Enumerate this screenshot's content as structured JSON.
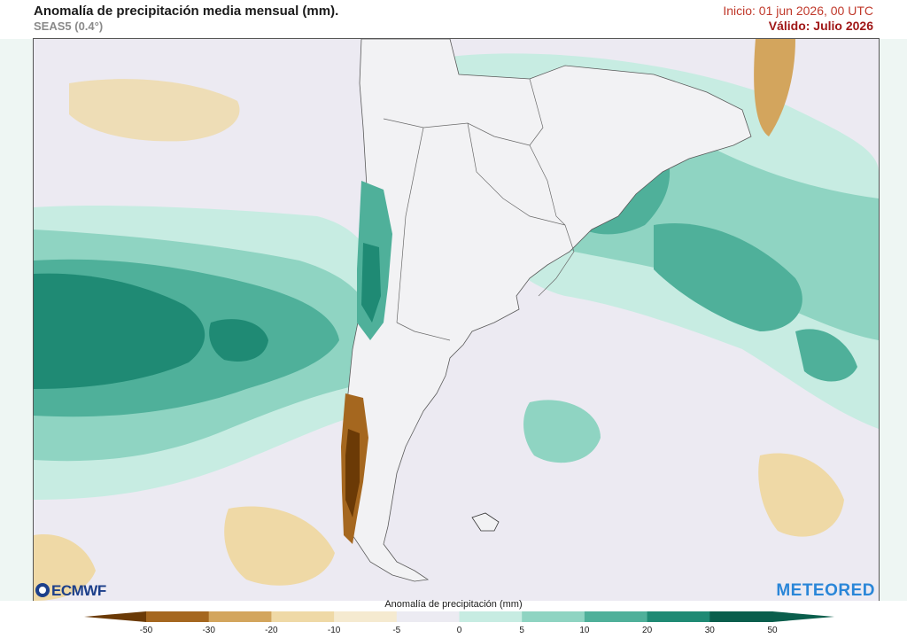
{
  "header": {
    "title": "Anomalía de precipitación media mensual (mm).",
    "subtitle": "SEAS5 (0.4°)",
    "init": "Inicio: 01 jun 2026, 00 UTC",
    "valid": "Válido: Julio 2026"
  },
  "logos": {
    "left": "ECMWF",
    "right": "METEORED"
  },
  "colorbar": {
    "title": "Anomalía de precipitación (mm)",
    "ticks": [
      "-50",
      "-30",
      "-20",
      "-10",
      "-5",
      "0",
      "5",
      "10",
      "20",
      "30",
      "50"
    ],
    "colors": [
      "#6b3a06",
      "#a5671f",
      "#d3a55d",
      "#efd9a6",
      "#f5ead0",
      "#ecebf2",
      "#c7ece2",
      "#8fd4c2",
      "#4fb09a",
      "#1f8a74",
      "#0a5e4c"
    ]
  },
  "map": {
    "ocean_color": "#eceaf2",
    "land_color": "#f2f2f4"
  }
}
